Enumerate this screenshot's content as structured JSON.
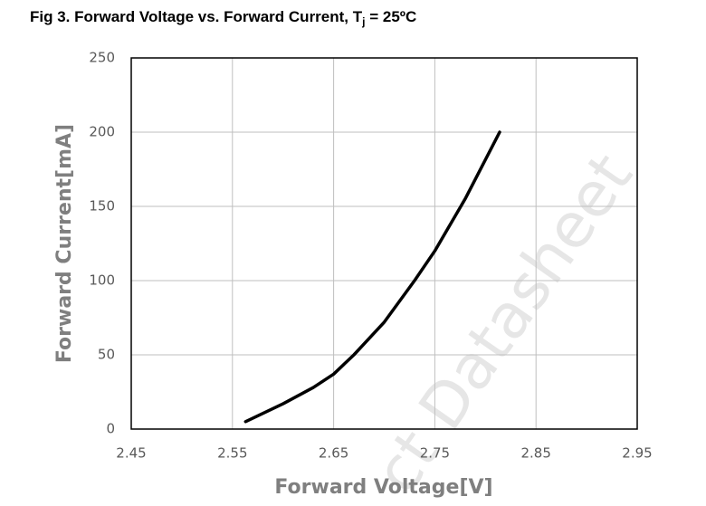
{
  "chart_data": {
    "type": "line",
    "title": [
      "Fig 3. Forward Voltage vs. Forward Current, T",
      "j",
      " = 25ºC"
    ],
    "x_label": "Forward Voltage[V]",
    "y_label": "Forward Current[mA]",
    "watermark": "ct Datasheet",
    "series": [
      {
        "color": "#000000",
        "x": [
          2.563,
          2.6,
          2.63,
          2.65,
          2.67,
          2.7,
          2.73,
          2.75,
          2.78,
          2.814
        ],
        "values": [
          5,
          17,
          28,
          37,
          50,
          72,
          100,
          120,
          155,
          200
        ]
      }
    ],
    "xlim": [
      2.45,
      2.95
    ],
    "xticks": [
      2.45,
      2.55,
      2.65,
      2.75,
      2.85,
      2.95
    ],
    "ylim": [
      0,
      250
    ],
    "yticks": [
      0,
      50,
      100,
      150,
      200,
      250
    ],
    "grid": true
  }
}
